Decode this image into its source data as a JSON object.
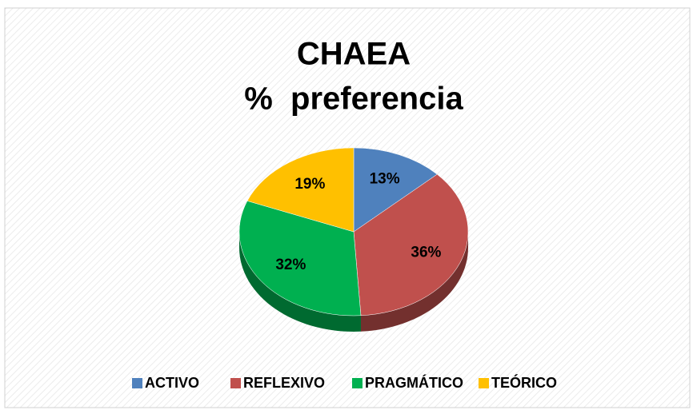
{
  "chart_data": {
    "type": "pie",
    "title": "CHAEA",
    "subtitle": "%  preferencia",
    "categories": [
      "ACTIVO",
      "REFLEXIVO",
      "PRAGMÁTICO",
      "TEÓRICO"
    ],
    "values": [
      13,
      36,
      32,
      19
    ],
    "value_labels": [
      "13%",
      "36%",
      "32%",
      "19%"
    ],
    "colors": [
      "#4f81bd",
      "#c0504d",
      "#00b050",
      "#ffc000"
    ],
    "legend": "bottom"
  }
}
